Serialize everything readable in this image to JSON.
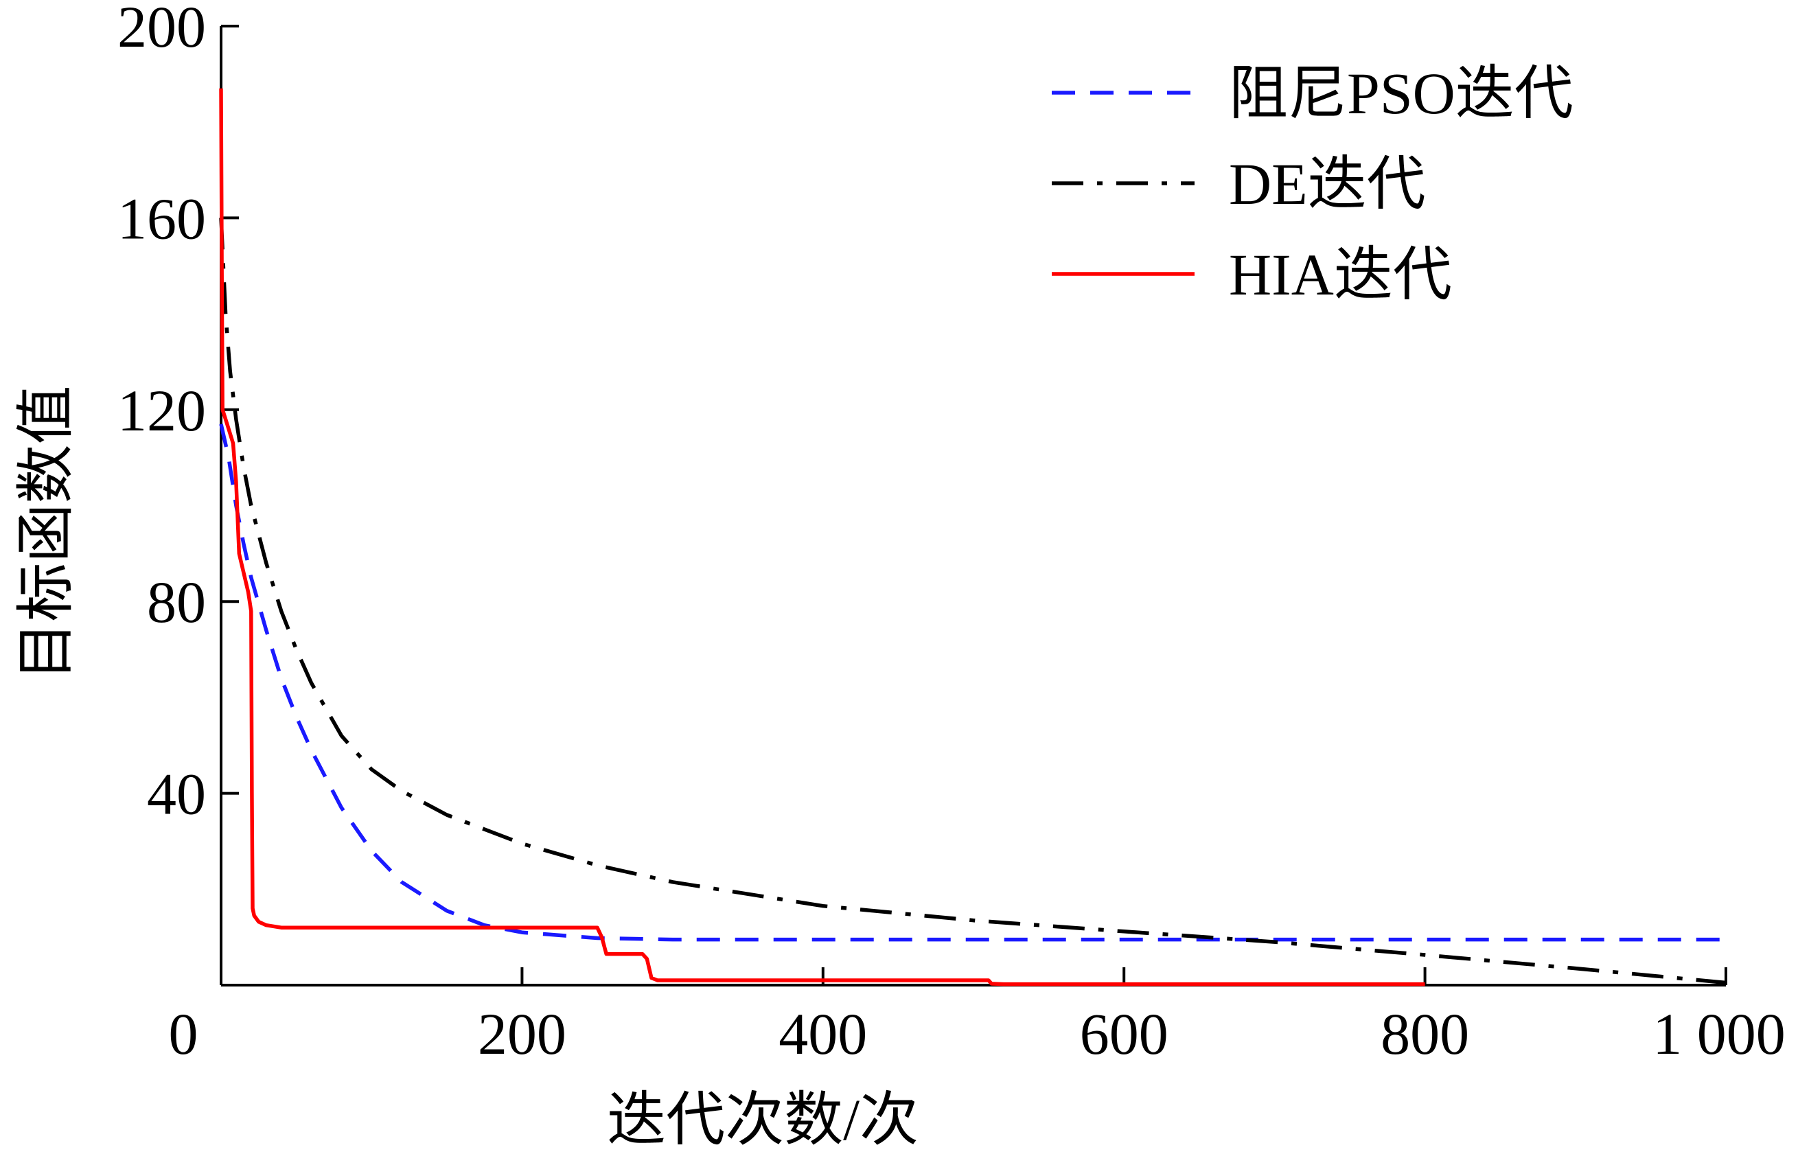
{
  "chart_data": {
    "type": "line",
    "title": "",
    "xlabel": "迭代次数/次",
    "ylabel": "目标函数值",
    "xlim": [
      0,
      1000
    ],
    "ylim": [
      0,
      200
    ],
    "x_ticks": [
      0,
      200,
      400,
      600,
      800,
      1000
    ],
    "x_tick_labels": [
      "0",
      "200",
      "400",
      "600",
      "800",
      "1 000"
    ],
    "y_ticks": [
      40,
      80,
      120,
      160,
      200
    ],
    "y_tick_labels": [
      "40",
      "80",
      "120",
      "160",
      "200"
    ],
    "grid": false,
    "legend_position": "top-right",
    "series": [
      {
        "name": "阻尼PSO迭代",
        "color": "#1a1aff",
        "style": "dashed",
        "x": [
          0,
          5,
          10,
          15,
          20,
          30,
          40,
          50,
          60,
          80,
          100,
          120,
          150,
          175,
          200,
          250,
          300,
          400,
          500,
          600,
          700,
          800,
          900,
          1000
        ],
        "y": [
          117,
          110,
          100,
          92,
          85,
          74,
          64,
          56,
          49,
          37,
          28,
          21.5,
          15.5,
          12.5,
          11,
          9.8,
          9.5,
          9.5,
          9.5,
          9.5,
          9.5,
          9.5,
          9.5,
          9.5
        ]
      },
      {
        "name": "DE迭代",
        "color": "#000000",
        "style": "dashdot",
        "x": [
          0,
          3,
          6,
          10,
          15,
          20,
          30,
          40,
          50,
          60,
          80,
          100,
          120,
          150,
          200,
          250,
          300,
          400,
          500,
          600,
          700,
          800,
          900,
          1000
        ],
        "y": [
          160,
          140,
          128,
          118,
          108,
          100,
          88,
          78,
          70,
          63,
          52,
          45,
          40.5,
          35.5,
          29.5,
          25,
          21.5,
          16.5,
          13.5,
          11.2,
          9,
          6.3,
          3.5,
          0.5
        ]
      },
      {
        "name": "HIA迭代",
        "color": "#ff0000",
        "style": "solid",
        "x": [
          0,
          0.5,
          1,
          5,
          8,
          10,
          12,
          15,
          18,
          20,
          20.5,
          21,
          22,
          25,
          30,
          40,
          50,
          100,
          150,
          200,
          250,
          253,
          256,
          270,
          280,
          283,
          286,
          290,
          300,
          400,
          500,
          510,
          512,
          520,
          600,
          700,
          800
        ],
        "y": [
          187,
          150,
          120,
          116,
          113,
          105,
          90,
          86,
          82,
          78,
          40,
          16,
          14.5,
          13.2,
          12.5,
          12,
          12,
          12,
          12,
          12,
          12,
          10,
          6.5,
          6.5,
          6.5,
          5.5,
          1.5,
          1,
          1,
          1,
          1,
          1,
          0.3,
          0.2,
          0.2,
          0.2,
          0.2
        ]
      }
    ]
  }
}
